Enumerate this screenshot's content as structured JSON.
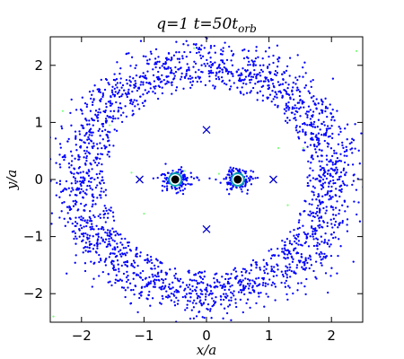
{
  "chart_data": {
    "type": "scatter",
    "title": "q=1    t=50t",
    "title_subscript": "orb",
    "xlabel": "x/a",
    "ylabel": "y/a",
    "xlim": [
      -2.5,
      2.5
    ],
    "ylim": [
      -2.5,
      2.5
    ],
    "x_ticks": [
      -2,
      -1,
      0,
      1,
      2
    ],
    "y_ticks": [
      -2,
      -1,
      0,
      1,
      2
    ],
    "x_tick_labels": [
      "−2",
      "−1",
      "0",
      "1",
      "2"
    ],
    "y_tick_labels": [
      "−2",
      "−1",
      "0",
      "1",
      "2"
    ],
    "grid": false,
    "legend": "none",
    "colors": {
      "disk_particles": "#0000ff",
      "sparse_particles": "#7fff7f",
      "stars": "#000000",
      "star_ring": "#00aaaa",
      "markers": "#0000cc"
    },
    "stars": [
      {
        "x": -0.5,
        "y": 0.0
      },
      {
        "x": 0.5,
        "y": 0.0
      }
    ],
    "lagrange_markers": [
      {
        "x": 0.0,
        "y": 0.87
      },
      {
        "x": 0.0,
        "y": -0.87
      },
      {
        "x": -1.07,
        "y": 0.0
      },
      {
        "x": 1.07,
        "y": 0.0
      }
    ],
    "circumbinary_disk": {
      "inner_radius": 1.6,
      "outer_radius": 2.6,
      "peak_radius": 2.0,
      "n_particles": 2300
    },
    "circumstellar_clouds": [
      {
        "x": -0.5,
        "y": 0.0,
        "radius": 0.22,
        "n_particles": 160
      },
      {
        "x": 0.5,
        "y": 0.0,
        "radius": 0.22,
        "n_particles": 160
      }
    ],
    "bridge_particles": [
      {
        "x": -0.85,
        "y": 0.02
      },
      {
        "x": -0.78,
        "y": 0.03
      },
      {
        "x": -0.2,
        "y": 0.02
      },
      {
        "x": 0.15,
        "y": 0.0
      },
      {
        "x": 0.28,
        "y": 0.01
      },
      {
        "x": 0.82,
        "y": 0.03
      },
      {
        "x": -0.12,
        "y": -0.01
      },
      {
        "x": 0.05,
        "y": 0.02
      }
    ],
    "sparse_green_particles": [
      {
        "x": 2.4,
        "y": 2.25
      },
      {
        "x": -2.3,
        "y": 1.2
      },
      {
        "x": 1.15,
        "y": 0.55
      },
      {
        "x": 1.3,
        "y": -0.45
      },
      {
        "x": -1.0,
        "y": -0.6
      },
      {
        "x": -1.55,
        "y": 0.95
      },
      {
        "x": -0.35,
        "y": 0.15
      },
      {
        "x": 0.2,
        "y": 0.1
      },
      {
        "x": 1.55,
        "y": 0.55
      },
      {
        "x": -0.2,
        "y": 2.3
      },
      {
        "x": -1.2,
        "y": 0.12
      },
      {
        "x": -2.45,
        "y": -2.4
      }
    ]
  }
}
